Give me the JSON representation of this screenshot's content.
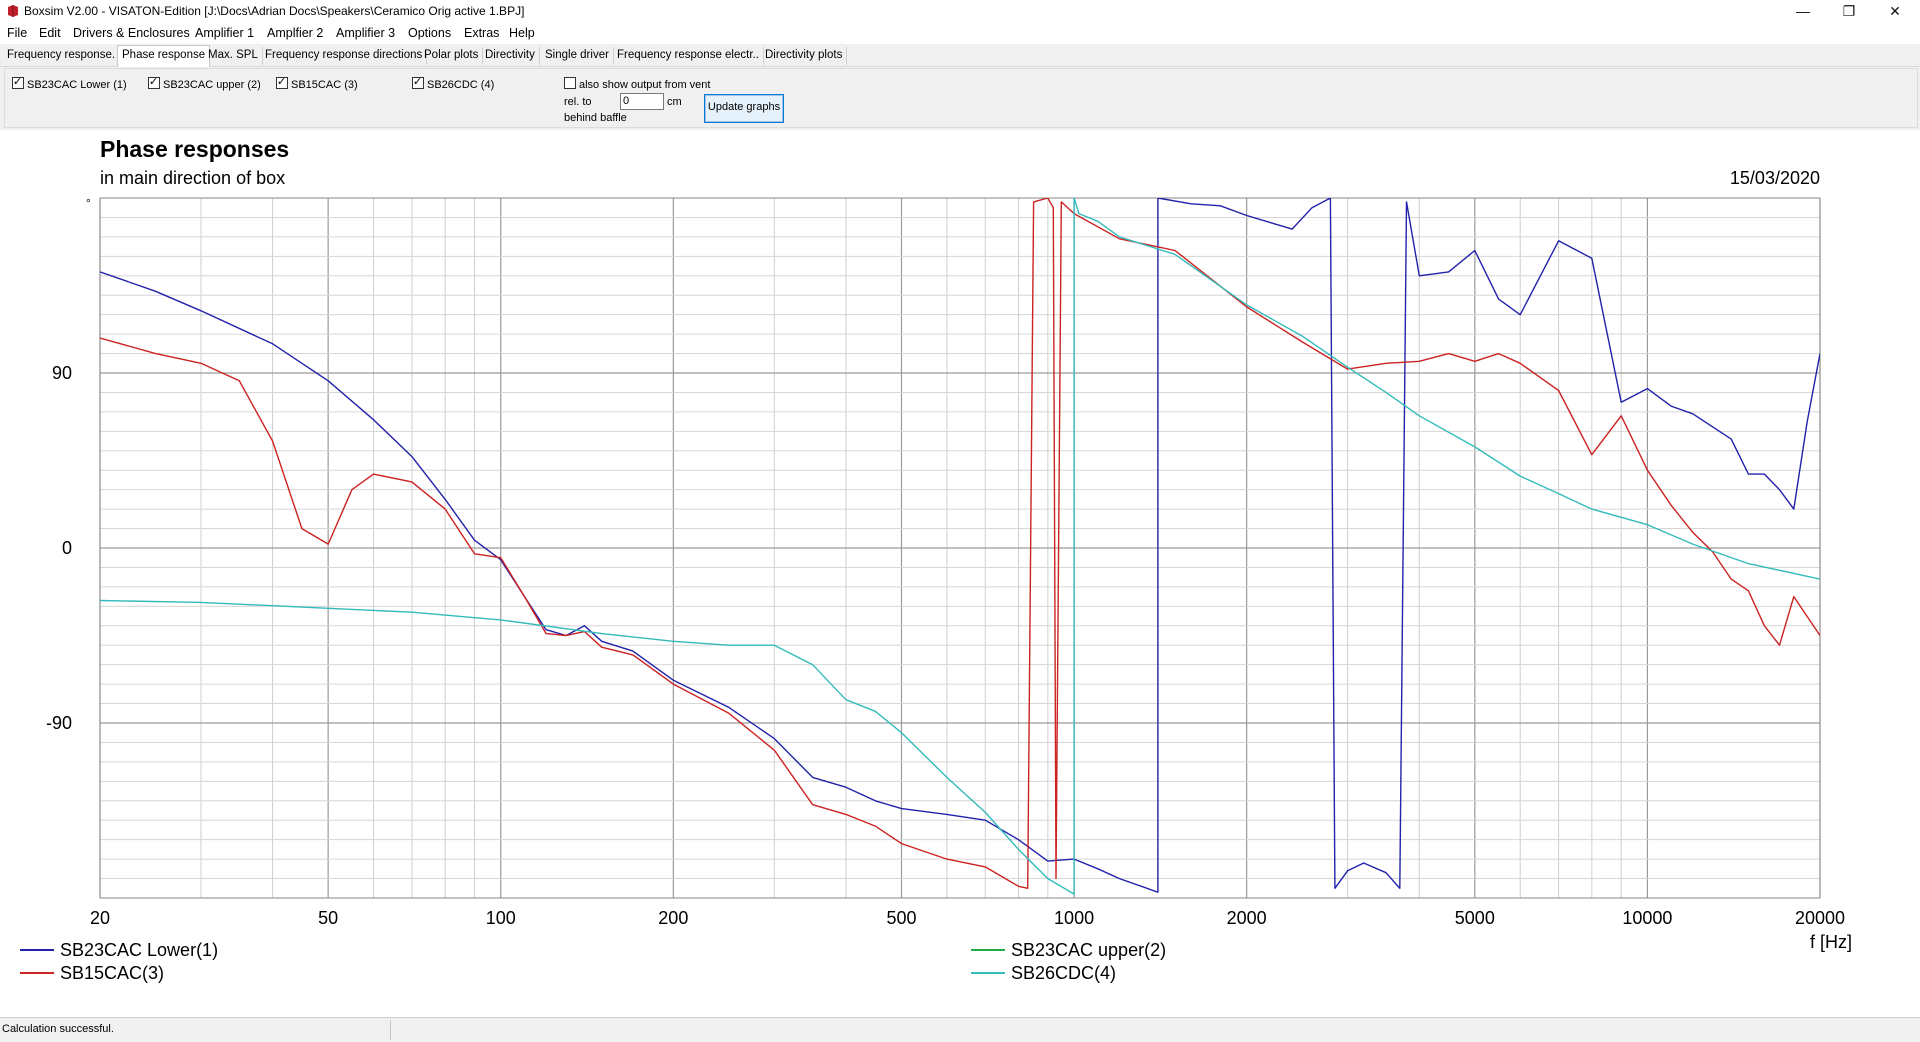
{
  "window": {
    "title": "Boxsim V2.00 - VISATON-Edition [J:\\Docs\\Adrian Docs\\Speakers\\Ceramico Orig active 1.BPJ]",
    "minimize": "—",
    "maximize": "❐",
    "close": "✕"
  },
  "menu": [
    "File",
    "Edit",
    "Drivers & Enclosures",
    "Amplifier 1",
    "Amplfier 2",
    "Amplifier 3",
    "Options",
    "Extras",
    "Help"
  ],
  "tabs": [
    "Frequency response.",
    "Phase response",
    "Max. SPL",
    "Frequency response directions",
    "Polar plots",
    "Directivity",
    "Single driver",
    "Frequency response electr..",
    "Directivity plots"
  ],
  "active_tab": "Phase response",
  "options": {
    "drivers": [
      {
        "label": "SB23CAC Lower (1)",
        "checked": true
      },
      {
        "label": "SB23CAC upper (2)",
        "checked": true
      },
      {
        "label": "SB15CAC (3)",
        "checked": true
      },
      {
        "label": "SB26CDC (4)",
        "checked": true
      }
    ],
    "vent_label": "also show output from vent",
    "vent_checked": false,
    "rel_to": "rel. to",
    "behind_baffle": "behind baffle",
    "distance_value": "0",
    "distance_unit": "cm",
    "update_button": "Update graphs"
  },
  "graph": {
    "title": "Phase responses",
    "subtitle": "in main direction of box",
    "date": "15/03/2020",
    "y_unit": "°",
    "x_unit": "f [Hz]"
  },
  "status": "Calculation successful.",
  "chart_data": {
    "type": "line",
    "title": "Phase responses",
    "subtitle": "in main direction of box",
    "xlabel": "f [Hz]",
    "ylabel": "°",
    "x_scale": "log",
    "xlim": [
      20,
      20000
    ],
    "ylim": [
      -180,
      180
    ],
    "x_ticks": [
      20,
      50,
      100,
      200,
      500,
      1000,
      2000,
      5000,
      10000,
      20000
    ],
    "y_ticks": [
      90,
      0,
      -90
    ],
    "grid": true,
    "legend_position": "bottom",
    "series": [
      {
        "name": "SB23CAC Lower(1)",
        "color": "#2222aa",
        "points": [
          [
            20,
            142
          ],
          [
            25,
            132
          ],
          [
            30,
            122
          ],
          [
            40,
            105
          ],
          [
            50,
            86
          ],
          [
            60,
            66
          ],
          [
            70,
            47
          ],
          [
            80,
            25
          ],
          [
            90,
            4
          ],
          [
            100,
            -6
          ],
          [
            110,
            -25
          ],
          [
            120,
            -42
          ],
          [
            130,
            -45
          ],
          [
            140,
            -40
          ],
          [
            150,
            -48
          ],
          [
            170,
            -53
          ],
          [
            200,
            -68
          ],
          [
            250,
            -82
          ],
          [
            300,
            -98
          ],
          [
            350,
            -118
          ],
          [
            400,
            -123
          ],
          [
            450,
            -130
          ],
          [
            500,
            -134
          ],
          [
            600,
            -137
          ],
          [
            700,
            -140
          ],
          [
            800,
            -150
          ],
          [
            900,
            -161
          ],
          [
            1000,
            -160
          ],
          [
            1100,
            -165
          ],
          [
            1200,
            -170
          ],
          [
            1400,
            -177
          ],
          [
            1400,
            180
          ],
          [
            1600,
            177
          ],
          [
            1800,
            176
          ],
          [
            2000,
            171
          ],
          [
            2400,
            164
          ],
          [
            2600,
            175
          ],
          [
            2800,
            180
          ],
          [
            2850,
            -175
          ],
          [
            3000,
            -166
          ],
          [
            3200,
            -162
          ],
          [
            3500,
            -167
          ],
          [
            3700,
            -175
          ],
          [
            3800,
            178
          ],
          [
            4000,
            140
          ],
          [
            4500,
            142
          ],
          [
            5000,
            153
          ],
          [
            5500,
            128
          ],
          [
            6000,
            120
          ],
          [
            7000,
            158
          ],
          [
            8000,
            149
          ],
          [
            9000,
            75
          ],
          [
            10000,
            82
          ],
          [
            11000,
            73
          ],
          [
            12000,
            69
          ],
          [
            14000,
            56
          ],
          [
            15000,
            38
          ],
          [
            16000,
            38
          ],
          [
            17000,
            30
          ],
          [
            18000,
            20
          ],
          [
            19000,
            65
          ],
          [
            20000,
            100
          ]
        ]
      },
      {
        "name": "SB23CAC upper(2)",
        "color": "#22aa44",
        "points": []
      },
      {
        "name": "SB15CAC(3)",
        "color": "#cc2222",
        "points": [
          [
            20,
            108
          ],
          [
            25,
            100
          ],
          [
            30,
            95
          ],
          [
            35,
            86
          ],
          [
            40,
            55
          ],
          [
            45,
            10
          ],
          [
            50,
            2
          ],
          [
            55,
            30
          ],
          [
            60,
            38
          ],
          [
            70,
            34
          ],
          [
            80,
            20
          ],
          [
            90,
            -3
          ],
          [
            100,
            -5
          ],
          [
            110,
            -25
          ],
          [
            120,
            -44
          ],
          [
            130,
            -45
          ],
          [
            140,
            -43
          ],
          [
            150,
            -51
          ],
          [
            170,
            -55
          ],
          [
            200,
            -70
          ],
          [
            250,
            -85
          ],
          [
            300,
            -104
          ],
          [
            350,
            -132
          ],
          [
            400,
            -137
          ],
          [
            450,
            -143
          ],
          [
            500,
            -152
          ],
          [
            600,
            -160
          ],
          [
            700,
            -164
          ],
          [
            800,
            -174
          ],
          [
            830,
            -175
          ],
          [
            850,
            178
          ],
          [
            900,
            180
          ],
          [
            920,
            175
          ],
          [
            930,
            -170
          ],
          [
            950,
            178
          ],
          [
            1000,
            172
          ],
          [
            1200,
            159
          ],
          [
            1500,
            153
          ],
          [
            2000,
            124
          ],
          [
            2500,
            106
          ],
          [
            3000,
            92
          ],
          [
            3500,
            95
          ],
          [
            4000,
            96
          ],
          [
            4500,
            100
          ],
          [
            5000,
            96
          ],
          [
            5500,
            100
          ],
          [
            6000,
            95
          ],
          [
            7000,
            81
          ],
          [
            8000,
            48
          ],
          [
            9000,
            68
          ],
          [
            10000,
            40
          ],
          [
            11000,
            22
          ],
          [
            12000,
            8
          ],
          [
            13000,
            -2
          ],
          [
            14000,
            -16
          ],
          [
            15000,
            -22
          ],
          [
            16000,
            -40
          ],
          [
            17000,
            -50
          ],
          [
            18000,
            -25
          ],
          [
            20000,
            -45
          ]
        ]
      },
      {
        "name": "SB26CDC(4)",
        "color": "#33bbbb",
        "points": [
          [
            20,
            -27
          ],
          [
            30,
            -28
          ],
          [
            50,
            -31
          ],
          [
            70,
            -33
          ],
          [
            100,
            -37
          ],
          [
            150,
            -44
          ],
          [
            200,
            -48
          ],
          [
            250,
            -50
          ],
          [
            300,
            -50
          ],
          [
            350,
            -60
          ],
          [
            400,
            -78
          ],
          [
            450,
            -84
          ],
          [
            500,
            -95
          ],
          [
            600,
            -118
          ],
          [
            700,
            -136
          ],
          [
            800,
            -155
          ],
          [
            900,
            -170
          ],
          [
            1000,
            -178
          ],
          [
            1000,
            180
          ],
          [
            1020,
            172
          ],
          [
            1100,
            168
          ],
          [
            1200,
            160
          ],
          [
            1500,
            151
          ],
          [
            2000,
            125
          ],
          [
            2500,
            109
          ],
          [
            3000,
            93
          ],
          [
            3500,
            80
          ],
          [
            4000,
            68
          ],
          [
            5000,
            52
          ],
          [
            6000,
            37
          ],
          [
            7000,
            28
          ],
          [
            8000,
            20
          ],
          [
            10000,
            12
          ],
          [
            12000,
            2
          ],
          [
            15000,
            -8
          ],
          [
            20000,
            -16
          ]
        ]
      }
    ]
  }
}
